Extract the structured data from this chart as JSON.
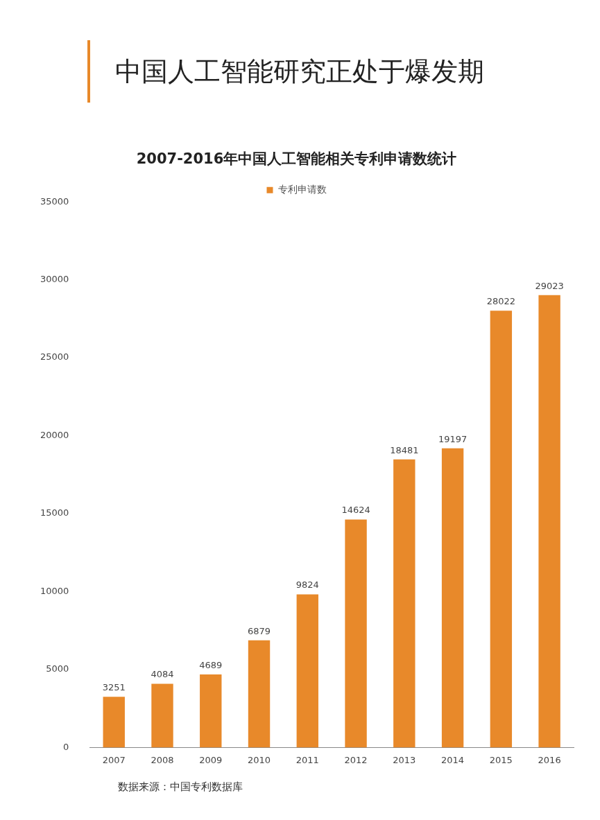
{
  "chart_data": {
    "type": "bar",
    "title": "中国人工智能研究正处于爆发期",
    "subtitle": "2007-2016年中国人工智能相关专利申请数统计",
    "categories": [
      "2007",
      "2008",
      "2009",
      "2010",
      "2011",
      "2012",
      "2013",
      "2014",
      "2015",
      "2016"
    ],
    "series": [
      {
        "name": "专利申请数",
        "color": "#e8892a",
        "values": [
          3251,
          4084,
          4689,
          6879,
          9824,
          14624,
          18481,
          19197,
          28022,
          29023
        ]
      }
    ],
    "ylim": [
      0,
      35000
    ],
    "yticks": [
      0,
      5000,
      10000,
      15000,
      20000,
      25000,
      30000,
      35000
    ],
    "grid": false,
    "legend": "top",
    "data_labels": true,
    "annotations": [
      "数据来源：中国专利数据库"
    ]
  }
}
